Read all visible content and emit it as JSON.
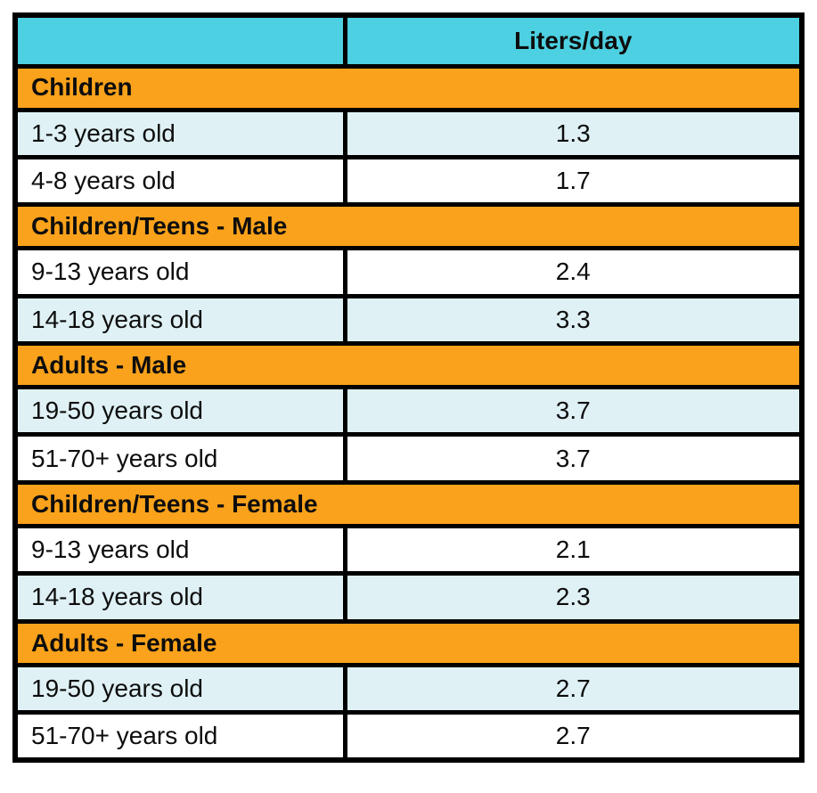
{
  "colors": {
    "header_bg": "#4DD0E1",
    "section_bg": "#FAA21B",
    "shaded_row_bg": "#DFF1F5",
    "plain_row_bg": "#FFFFFF",
    "border": "#000000",
    "text": "#0D0D0D",
    "page_bg": "#FFFFFF"
  },
  "chart_data": {
    "type": "table",
    "columns": [
      "",
      "Liters/day"
    ],
    "sections": [
      {
        "header": "Children",
        "rows": [
          {
            "label": "1-3 years old",
            "value": "1.3",
            "shaded": true
          },
          {
            "label": "4-8 years old",
            "value": "1.7",
            "shaded": false
          }
        ]
      },
      {
        "header": "Children/Teens - Male",
        "rows": [
          {
            "label": "9-13 years old",
            "value": "2.4",
            "shaded": false
          },
          {
            "label": "14-18 years old",
            "value": "3.3",
            "shaded": true
          }
        ]
      },
      {
        "header": "Adults - Male",
        "rows": [
          {
            "label": "19-50 years old",
            "value": "3.7",
            "shaded": true
          },
          {
            "label": "51-70+ years old",
            "value": "3.7",
            "shaded": false
          }
        ]
      },
      {
        "header": "Children/Teens - Female",
        "rows": [
          {
            "label": "9-13 years old",
            "value": "2.1",
            "shaded": false
          },
          {
            "label": "14-18 years old",
            "value": "2.3",
            "shaded": true
          }
        ]
      },
      {
        "header": "Adults - Female",
        "rows": [
          {
            "label": "19-50 years old",
            "value": "2.7",
            "shaded": true
          },
          {
            "label": "51-70+ years old",
            "value": "2.7",
            "shaded": false
          }
        ]
      }
    ]
  }
}
